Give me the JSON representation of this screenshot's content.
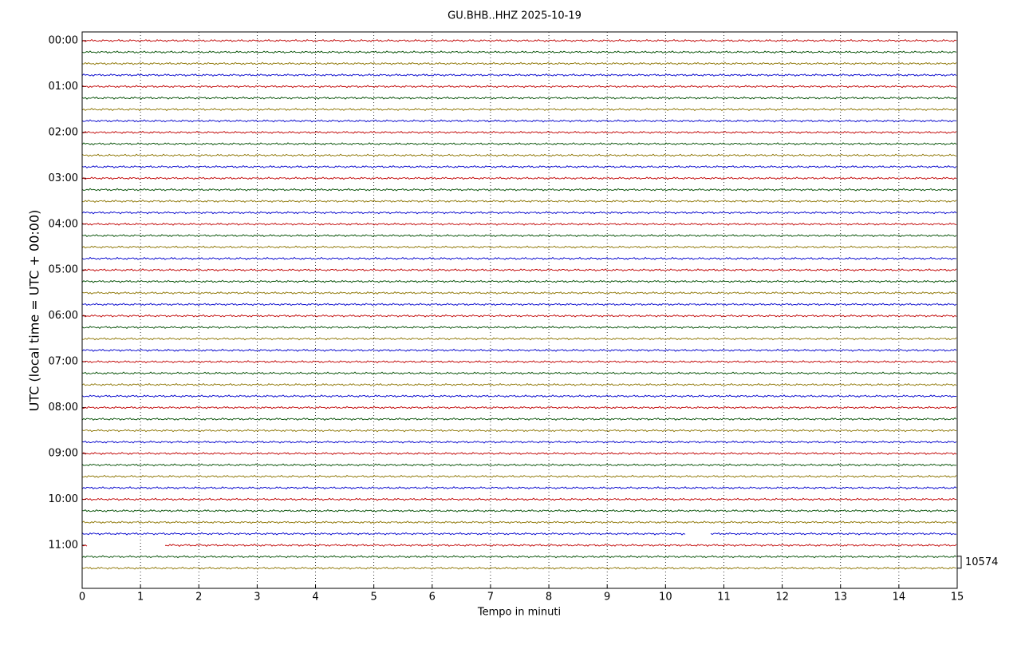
{
  "chart_data": {
    "type": "helicorder",
    "title": "GU.BHB..HHZ 2025-10-19",
    "x_label": "Tempo in minuti",
    "y_label": "UTC (local time = UTC + 00:00)",
    "xlim": [
      0,
      15
    ],
    "xticks": [
      0,
      1,
      2,
      3,
      4,
      5,
      6,
      7,
      8,
      9,
      10,
      11,
      12,
      13,
      14,
      15
    ],
    "ylim": [
      11.94,
      -0.19
    ],
    "yticks": [
      {
        "value": 0,
        "label": "00:00"
      },
      {
        "value": 1,
        "label": "01:00"
      },
      {
        "value": 2,
        "label": "02:00"
      },
      {
        "value": 3,
        "label": "03:00"
      },
      {
        "value": 4,
        "label": "04:00"
      },
      {
        "value": 5,
        "label": "05:00"
      },
      {
        "value": 6,
        "label": "06:00"
      },
      {
        "value": 7,
        "label": "07:00"
      },
      {
        "value": 8,
        "label": "08:00"
      },
      {
        "value": 9,
        "label": "09:00"
      },
      {
        "value": 10,
        "label": "10:00"
      },
      {
        "value": 11,
        "label": "11:00"
      }
    ],
    "grid": true,
    "colors": [
      "#c00000",
      "#004d00",
      "#8c7400",
      "#0000cc"
    ],
    "offsets": [
      0,
      0.25,
      0.5,
      0.75,
      1,
      1.25,
      1.5,
      1.75,
      2,
      2.25,
      2.5,
      2.75,
      3,
      3.25,
      3.5,
      3.75,
      4,
      4.25,
      4.5,
      4.75,
      5,
      5.25,
      5.5,
      5.75,
      6,
      6.25,
      6.5,
      6.75,
      7,
      7.25,
      7.5,
      7.75,
      8,
      8.25,
      8.5,
      8.75,
      9,
      9.25,
      9.5,
      9.75,
      10,
      10.25,
      10.5,
      10.75,
      11,
      11.25,
      11.5
    ],
    "gaps": [
      {
        "offset": 10.75,
        "range": [
          10.35,
          10.75
        ]
      },
      {
        "offset": 11,
        "range": [
          0.1,
          1.4
        ]
      }
    ],
    "scale_label": "10574"
  }
}
